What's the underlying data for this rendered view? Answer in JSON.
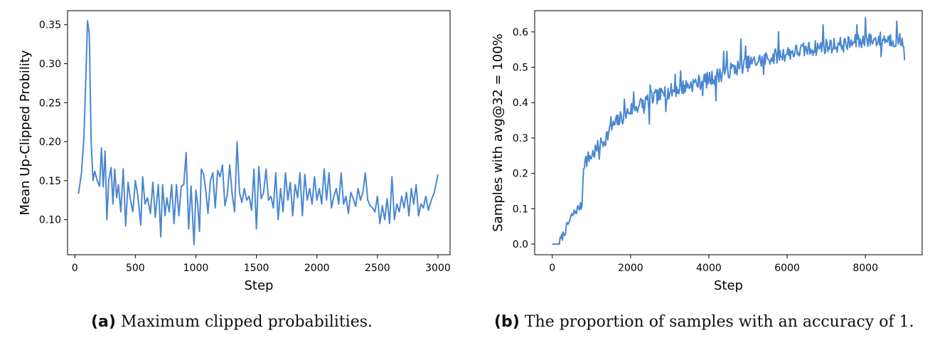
{
  "chart_data": [
    {
      "type": "line",
      "xlabel": "Step",
      "ylabel": "Mean Up-Clipped Probility",
      "xlim": [
        -60,
        3100
      ],
      "ylim": [
        0.055,
        0.368
      ],
      "xticks": [
        0,
        500,
        1000,
        1500,
        2000,
        2500,
        3000
      ],
      "yticks": [
        0.1,
        0.15,
        0.2,
        0.25,
        0.3,
        0.35
      ],
      "ytick_labels": [
        "0.10",
        "0.15",
        "0.20",
        "0.25",
        "0.30",
        "0.35"
      ],
      "grid": false,
      "series_color": "#4a87d1",
      "anchors": [
        [
          30,
          0.133
        ],
        [
          55,
          0.16
        ],
        [
          75,
          0.205
        ],
        [
          90,
          0.275
        ],
        [
          105,
          0.355
        ],
        [
          120,
          0.338
        ],
        [
          135,
          0.2
        ],
        [
          150,
          0.15
        ],
        [
          165,
          0.162
        ],
        [
          185,
          0.15
        ],
        [
          205,
          0.143
        ],
        [
          220,
          0.192
        ],
        [
          235,
          0.142
        ],
        [
          250,
          0.188
        ],
        [
          265,
          0.1
        ],
        [
          280,
          0.15
        ],
        [
          300,
          0.167
        ],
        [
          315,
          0.12
        ],
        [
          330,
          0.165
        ],
        [
          345,
          0.128
        ],
        [
          360,
          0.145
        ],
        [
          380,
          0.11
        ],
        [
          400,
          0.165
        ],
        [
          420,
          0.092
        ],
        [
          440,
          0.148
        ],
        [
          460,
          0.125
        ],
        [
          480,
          0.11
        ],
        [
          500,
          0.15
        ],
        [
          520,
          0.132
        ],
        [
          545,
          0.093
        ],
        [
          560,
          0.155
        ],
        [
          580,
          0.12
        ],
        [
          600,
          0.128
        ],
        [
          625,
          0.108
        ],
        [
          645,
          0.148
        ],
        [
          665,
          0.103
        ],
        [
          690,
          0.145
        ],
        [
          710,
          0.078
        ],
        [
          725,
          0.145
        ],
        [
          745,
          0.105
        ],
        [
          760,
          0.128
        ],
        [
          780,
          0.11
        ],
        [
          800,
          0.145
        ],
        [
          820,
          0.095
        ],
        [
          840,
          0.145
        ],
        [
          860,
          0.105
        ],
        [
          880,
          0.143
        ],
        [
          900,
          0.145
        ],
        [
          920,
          0.186
        ],
        [
          940,
          0.088
        ],
        [
          960,
          0.143
        ],
        [
          985,
          0.068
        ],
        [
          1000,
          0.138
        ],
        [
          1015,
          0.12
        ],
        [
          1030,
          0.085
        ],
        [
          1045,
          0.165
        ],
        [
          1065,
          0.158
        ],
        [
          1080,
          0.14
        ],
        [
          1100,
          0.108
        ],
        [
          1120,
          0.15
        ],
        [
          1140,
          0.16
        ],
        [
          1160,
          0.115
        ],
        [
          1180,
          0.163
        ],
        [
          1200,
          0.155
        ],
        [
          1220,
          0.17
        ],
        [
          1240,
          0.118
        ],
        [
          1260,
          0.132
        ],
        [
          1280,
          0.17
        ],
        [
          1300,
          0.133
        ],
        [
          1320,
          0.11
        ],
        [
          1340,
          0.2
        ],
        [
          1360,
          0.135
        ],
        [
          1380,
          0.122
        ],
        [
          1400,
          0.14
        ],
        [
          1420,
          0.125
        ],
        [
          1440,
          0.13
        ],
        [
          1460,
          0.112
        ],
        [
          1480,
          0.165
        ],
        [
          1500,
          0.088
        ],
        [
          1520,
          0.168
        ],
        [
          1540,
          0.127
        ],
        [
          1560,
          0.135
        ],
        [
          1580,
          0.165
        ],
        [
          1600,
          0.125
        ],
        [
          1620,
          0.13
        ],
        [
          1640,
          0.115
        ],
        [
          1660,
          0.16
        ],
        [
          1680,
          0.1
        ],
        [
          1700,
          0.14
        ],
        [
          1720,
          0.11
        ],
        [
          1740,
          0.16
        ],
        [
          1760,
          0.125
        ],
        [
          1780,
          0.148
        ],
        [
          1800,
          0.105
        ],
        [
          1820,
          0.145
        ],
        [
          1840,
          0.128
        ],
        [
          1860,
          0.16
        ],
        [
          1880,
          0.105
        ],
        [
          1900,
          0.158
        ],
        [
          1920,
          0.125
        ],
        [
          1940,
          0.14
        ],
        [
          1960,
          0.12
        ],
        [
          1980,
          0.155
        ],
        [
          2000,
          0.125
        ],
        [
          2020,
          0.14
        ],
        [
          2040,
          0.12
        ],
        [
          2060,
          0.165
        ],
        [
          2080,
          0.125
        ],
        [
          2100,
          0.16
        ],
        [
          2120,
          0.115
        ],
        [
          2140,
          0.13
        ],
        [
          2160,
          0.14
        ],
        [
          2180,
          0.12
        ],
        [
          2200,
          0.16
        ],
        [
          2220,
          0.12
        ],
        [
          2240,
          0.13
        ],
        [
          2260,
          0.108
        ],
        [
          2280,
          0.135
        ],
        [
          2300,
          0.127
        ],
        [
          2320,
          0.117
        ],
        [
          2340,
          0.14
        ],
        [
          2360,
          0.125
        ],
        [
          2380,
          0.135
        ],
        [
          2400,
          0.16
        ],
        [
          2420,
          0.125
        ],
        [
          2440,
          0.118
        ],
        [
          2460,
          0.115
        ],
        [
          2480,
          0.11
        ],
        [
          2500,
          0.13
        ],
        [
          2520,
          0.095
        ],
        [
          2540,
          0.118
        ],
        [
          2560,
          0.1
        ],
        [
          2580,
          0.127
        ],
        [
          2600,
          0.095
        ],
        [
          2620,
          0.155
        ],
        [
          2640,
          0.1
        ],
        [
          2660,
          0.12
        ],
        [
          2680,
          0.11
        ],
        [
          2700,
          0.13
        ],
        [
          2720,
          0.115
        ],
        [
          2740,
          0.135
        ],
        [
          2760,
          0.105
        ],
        [
          2780,
          0.14
        ],
        [
          2800,
          0.12
        ],
        [
          2820,
          0.145
        ],
        [
          2840,
          0.105
        ],
        [
          2860,
          0.12
        ],
        [
          2880,
          0.115
        ],
        [
          2900,
          0.13
        ],
        [
          2920,
          0.112
        ],
        [
          2945,
          0.125
        ],
        [
          2970,
          0.135
        ],
        [
          3000,
          0.158
        ]
      ]
    },
    {
      "type": "line",
      "xlabel": "Step",
      "ylabel": "Samples with avg@32 = 100%",
      "xlim": [
        -450,
        9450
      ],
      "ylim": [
        -0.03,
        0.66
      ],
      "xticks": [
        0,
        2000,
        4000,
        6000,
        8000
      ],
      "yticks": [
        0.0,
        0.1,
        0.2,
        0.3,
        0.4,
        0.5,
        0.6
      ],
      "ytick_labels": [
        "0.0",
        "0.1",
        "0.2",
        "0.3",
        "0.4",
        "0.5",
        "0.6"
      ],
      "grid": false,
      "series_color": "#4a87d1",
      "trend_anchors": [
        [
          0,
          0.0
        ],
        [
          150,
          0.0
        ],
        [
          300,
          0.03
        ],
        [
          500,
          0.08
        ],
        [
          650,
          0.1
        ],
        [
          760,
          0.11
        ],
        [
          800,
          0.23
        ],
        [
          1000,
          0.25
        ],
        [
          1300,
          0.29
        ],
        [
          1600,
          0.34
        ],
        [
          2000,
          0.38
        ],
        [
          2500,
          0.41
        ],
        [
          3000,
          0.43
        ],
        [
          3500,
          0.45
        ],
        [
          4000,
          0.465
        ],
        [
          4500,
          0.49
        ],
        [
          5000,
          0.51
        ],
        [
          5500,
          0.525
        ],
        [
          6000,
          0.54
        ],
        [
          6500,
          0.55
        ],
        [
          7000,
          0.56
        ],
        [
          7500,
          0.565
        ],
        [
          8000,
          0.575
        ],
        [
          8500,
          0.58
        ],
        [
          9000,
          0.575
        ]
      ],
      "spikes": [
        [
          8000,
          0.64
        ],
        [
          8800,
          0.63
        ],
        [
          7780,
          0.62
        ],
        [
          6920,
          0.62
        ],
        [
          5780,
          0.6
        ],
        [
          4950,
          0.56
        ],
        [
          4820,
          0.58
        ],
        [
          4470,
          0.545
        ],
        [
          4380,
          0.545
        ],
        [
          3280,
          0.49
        ],
        [
          3150,
          0.48
        ],
        [
          2880,
          0.445
        ],
        [
          2500,
          0.45
        ],
        [
          2080,
          0.43
        ],
        [
          1850,
          0.41
        ],
        [
          1500,
          0.36
        ],
        [
          9050,
          0.52
        ],
        [
          8400,
          0.53
        ],
        [
          5400,
          0.48
        ],
        [
          4190,
          0.405
        ],
        [
          3850,
          0.42
        ],
        [
          2900,
          0.375
        ],
        [
          2480,
          0.34
        ],
        [
          2350,
          0.37
        ],
        [
          1200,
          0.24
        ]
      ],
      "step_spacing": 20,
      "noise_start": 180,
      "noise_amplitude": 0.022,
      "noise_amplitude_early": 0.012,
      "noise_seed": 7
    }
  ],
  "captions": [
    {
      "label": "(a)",
      "text": "Maximum clipped probabilities."
    },
    {
      "label": "(b)",
      "text": "The proportion of samples with an accuracy of 1."
    }
  ]
}
